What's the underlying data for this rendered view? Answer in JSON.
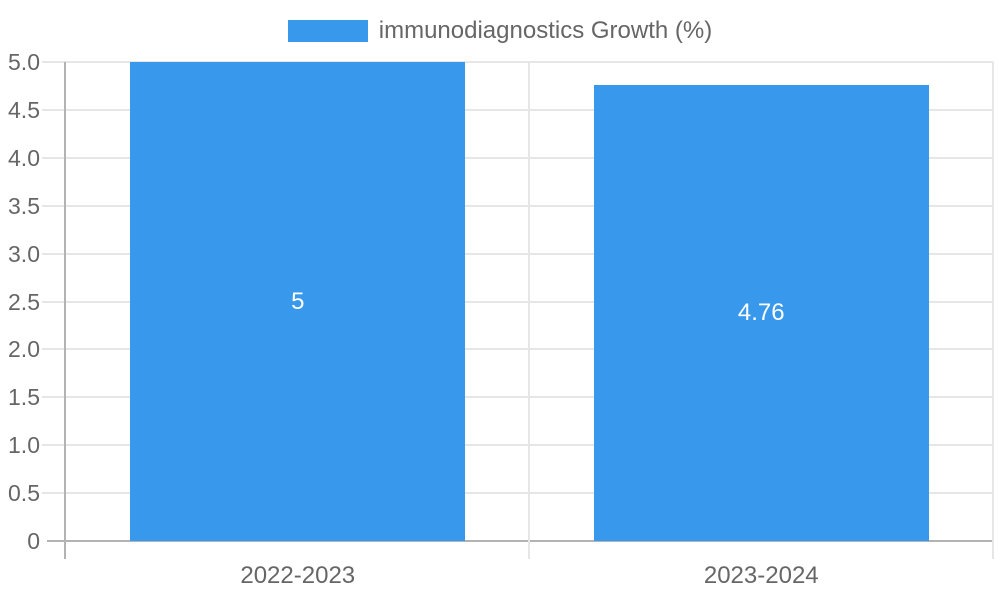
{
  "legend": {
    "label": "immunodiagnostics Growth (%)",
    "swatch_color": "#3899ec"
  },
  "chart_data": {
    "type": "bar",
    "title": "immunodiagnostics Growth (%)",
    "categories": [
      "2022-2023",
      "2023-2024"
    ],
    "series": [
      {
        "name": "immunodiagnostics Growth (%)",
        "values": [
          5,
          4.76
        ]
      }
    ],
    "value_labels": [
      "5",
      "4.76"
    ],
    "xlabel": "",
    "ylabel": "",
    "ylim": [
      0,
      5
    ],
    "ytick_step": 0.5,
    "ytick_labels": [
      "0",
      "0.5",
      "1.0",
      "1.5",
      "2.0",
      "2.5",
      "3.0",
      "3.5",
      "4.0",
      "4.5",
      "5.0"
    ],
    "grid": true,
    "legend_position": "top",
    "colors": {
      "bar": "#3899ec",
      "value_label": "#ffffff",
      "axis_text": "#666666",
      "gridline": "#e6e6e6",
      "axis_line": "#b3b3b3"
    }
  }
}
